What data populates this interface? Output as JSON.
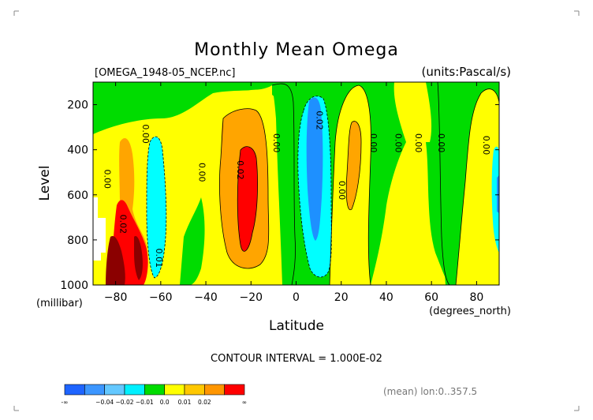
{
  "chart_data": {
    "type": "contour",
    "title": "Monthly Mean Omega",
    "file_label": "[OMEGA_1948-05_NCEP.nc]",
    "units_label": "(units:Pascal/s)",
    "xlabel": "Latitude",
    "x_units": "(degrees_north)",
    "ylabel": "Level",
    "y_units": "(millibar)",
    "xlim": [
      -90,
      90
    ],
    "ylim": [
      1000,
      100
    ],
    "x_ticks": [
      -80,
      -60,
      -40,
      -20,
      0,
      20,
      40,
      60,
      80
    ],
    "x_tick_labels": [
      "−80",
      "−60",
      "−40",
      "−20",
      "0",
      "20",
      "40",
      "60",
      "80"
    ],
    "y_ticks": [
      200,
      400,
      600,
      800,
      1000
    ],
    "y_tick_labels": [
      "200",
      "400",
      "600",
      "800",
      "1000"
    ],
    "contour_interval_text": "CONTOUR INTERVAL = 1.000E-02",
    "mean_text": "(mean) lon:0..357.5",
    "contour_labels": [
      {
        "text": "0.00",
        "lat": -85,
        "level": 530
      },
      {
        "text": "0.02",
        "lat": -78,
        "level": 730
      },
      {
        "text": "0.00",
        "lat": -68,
        "level": 330
      },
      {
        "text": "0.01",
        "lat": -62,
        "level": 880
      },
      {
        "text": "0.00",
        "lat": -43,
        "level": 500
      },
      {
        "text": "0.02",
        "lat": -26,
        "level": 490
      },
      {
        "text": "0.00",
        "lat": -10,
        "level": 370
      },
      {
        "text": "0.02",
        "lat": 9,
        "level": 270
      },
      {
        "text": "0.00",
        "lat": 19,
        "level": 580
      },
      {
        "text": "0.00",
        "lat": 33,
        "level": 370
      },
      {
        "text": "0.00",
        "lat": 44,
        "level": 370
      },
      {
        "text": "0.00",
        "lat": 53,
        "level": 370
      },
      {
        "text": "0.00",
        "lat": 63,
        "level": 370
      },
      {
        "text": "0.00",
        "lat": 83,
        "level": 380
      }
    ],
    "colorbar": {
      "colors": [
        "#1e64ff",
        "#3c96ff",
        "#64c8ff",
        "#00f0ff",
        "#00dc00",
        "#ffff00",
        "#ffc800",
        "#ff9600",
        "#ff0000"
      ],
      "labels": [
        "-∞",
        "−0.04",
        "−0.02",
        "−0.01",
        "0.0",
        "0.01",
        "0.02",
        "∞"
      ]
    },
    "level_colors": {
      "undefined": "#ffffff",
      "dark_red": "#8b0000",
      "red": "#ff0000",
      "orange": "#ffa500",
      "yellow": "#ffff00",
      "green": "#00dc00",
      "cyan": "#00ffff",
      "blue": "#1e90ff"
    }
  }
}
